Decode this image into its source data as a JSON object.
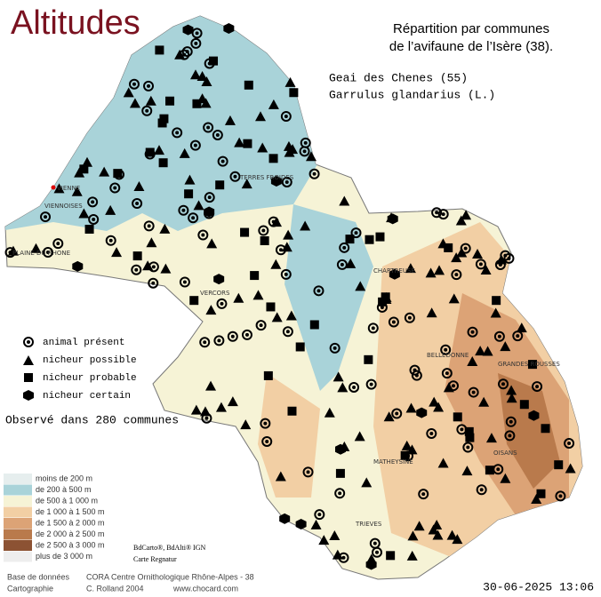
{
  "header": {
    "title": "Altitudes",
    "subtitle_line1": "Répartition par communes",
    "subtitle_line2": "de l’avifaune de l’Isère (38).",
    "species_common": "Geai des Chenes  (55)",
    "species_latin": "Garrulus glandarius (L.)"
  },
  "status_legend": [
    "animal présent",
    "nicheur possible",
    "nicheur probable",
    "nicheur certain"
  ],
  "observed": "Observé dans 280 communes",
  "altitude_legend": [
    {
      "label": "moins de 200 m",
      "color": "#e6eeee"
    },
    {
      "label": "de 200 à 500 m",
      "color": "#a9d3d9"
    },
    {
      "label": "de 500 à 1 000 m",
      "color": "#f6f3d6"
    },
    {
      "label": "de 1 000 à 1 500 m",
      "color": "#f2cfa4"
    },
    {
      "label": "de 1 500 à 2 000 m",
      "color": "#dca376"
    },
    {
      "label": "de 2 000 à 2 500 m",
      "color": "#b97a4c"
    },
    {
      "label": "de 2 500 à 3 000 m",
      "color": "#8c5233"
    },
    {
      "label": "plus de 3 000 m",
      "color": "#eeeeee"
    }
  ],
  "places": [
    "VIENNE",
    "VIENNOISES",
    "PLAINE DU RHONE",
    "TERRES FROIDES",
    "CHARTREUSE",
    "VERCORS",
    "TRIEVES",
    "OISANS",
    "MATHEYSINE",
    "GRANDES ROUSSES",
    "BELLEDONNE"
  ],
  "credits": {
    "map_source": "BdCarto®, BdAlti® IGN",
    "map_author": "Carte Regnatur",
    "db_label": "Base de données",
    "db_value": "CORA Centre Ornithologique Rhône-Alpes - 38",
    "carto_label": "Cartographie",
    "carto_value": "C. Rolland 2004",
    "website": "www.chocard.com",
    "timestamp": "30-06-2025 13:06"
  }
}
